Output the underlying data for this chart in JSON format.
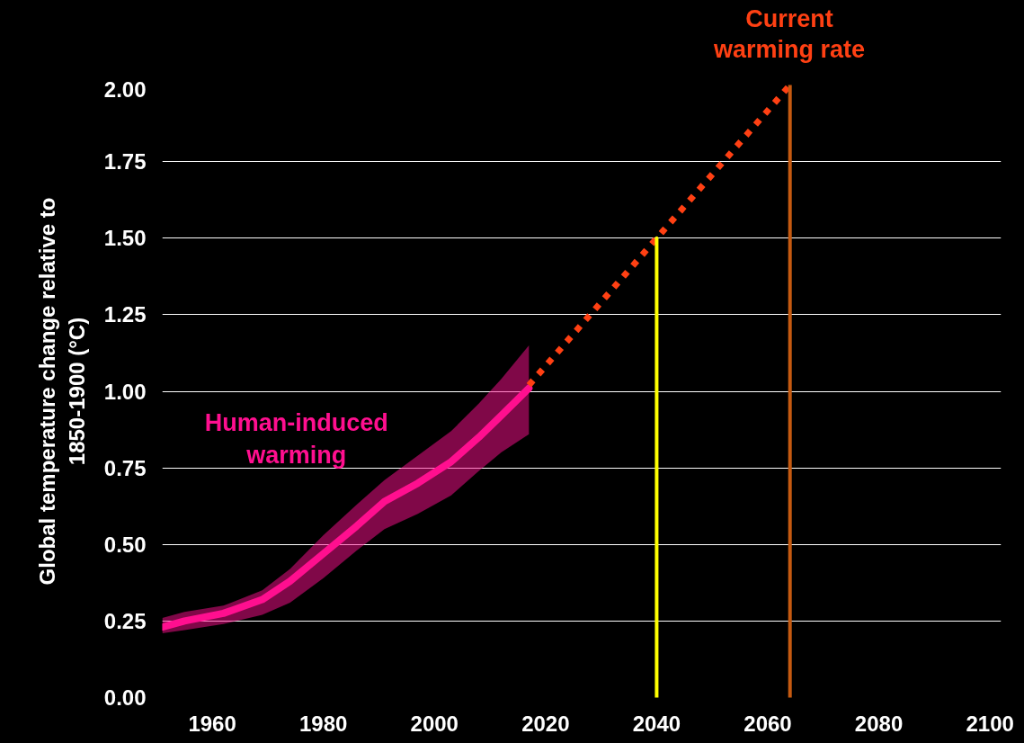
{
  "chart_data": {
    "type": "line",
    "ylabel": "Global temperature change relative to 1850-1900 (°C)",
    "xlim": [
      1951,
      2102
    ],
    "ylim": [
      0,
      2
    ],
    "xticks": [
      1960,
      1980,
      2000,
      2020,
      2040,
      2060,
      2080,
      2100
    ],
    "yticks": [
      {
        "value": 0,
        "label": "0.00"
      },
      {
        "value": 0.25,
        "label": "0.25"
      },
      {
        "value": 0.5,
        "label": "0.50"
      },
      {
        "value": 0.75,
        "label": "0.75"
      },
      {
        "value": 1,
        "label": "1.00"
      },
      {
        "value": 1.25,
        "label": "1.25"
      },
      {
        "value": 1.5,
        "label": "1.50"
      },
      {
        "value": 1.75,
        "label": "1.75"
      },
      {
        "value": 2,
        "label": "2.00"
      }
    ],
    "grid": "y",
    "series": [
      {
        "color": "#ff0f8f",
        "x": [
          1951,
          1955,
          1962,
          1969,
          1974,
          1980,
          1986,
          1991,
          1997,
          2003,
          2008,
          2012,
          2017
        ],
        "values": [
          0.23,
          0.25,
          0.275,
          0.32,
          0.38,
          0.47,
          0.56,
          0.64,
          0.7,
          0.77,
          0.85,
          0.92,
          1.01
        ],
        "lower": [
          0.21,
          0.22,
          0.24,
          0.27,
          0.31,
          0.39,
          0.48,
          0.55,
          0.6,
          0.66,
          0.74,
          0.8,
          0.86
        ],
        "upper": [
          0.26,
          0.28,
          0.3,
          0.35,
          0.42,
          0.53,
          0.63,
          0.71,
          0.79,
          0.87,
          0.96,
          1.04,
          1.15
        ]
      },
      {
        "line_style": "dotted",
        "color": "#ff4013",
        "x": [
          2017,
          2064
        ],
        "values": [
          1.02,
          2.0
        ]
      },
      {
        "color": "#ffff00",
        "x": [
          2040,
          2040
        ],
        "values": [
          0,
          1.5
        ]
      },
      {
        "color": "#c55a11",
        "x": [
          2064,
          2064
        ],
        "values": [
          0,
          2.0
        ]
      }
    ],
    "annotations": [
      "Human-induced warming",
      "Current warming rate"
    ]
  }
}
